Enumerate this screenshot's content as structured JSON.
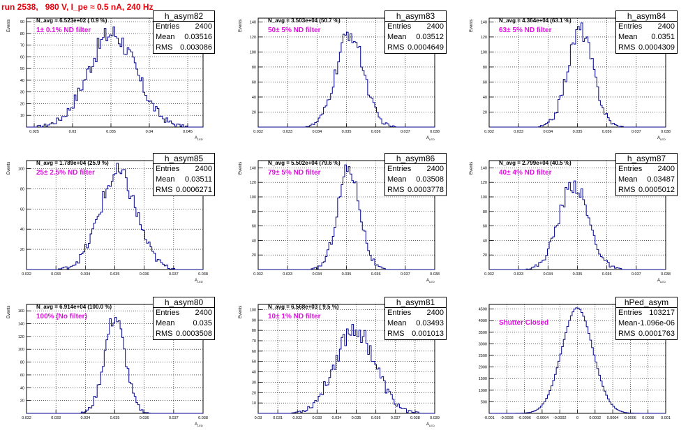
{
  "run_title": "run 2538,   980 V, I_pe ≈ 0.5 nA, 240 Hz",
  "colors": {
    "hist": "#00008b",
    "title": "#e8000b",
    "filter": "#e010e0"
  },
  "chart_data": [
    {
      "type": "histogram",
      "name": "h_asym82",
      "navg": "N_avg = 6.523e+02 ( 0.9 %)",
      "filter": "1± 0.1% ND filter",
      "stats": {
        "entries": "2400",
        "mean": "0.03516",
        "rms": "0.003086"
      },
      "xlabel": "A",
      "xlabel_sub": "LED",
      "ylabel": "Events",
      "xlim": [
        0.024,
        0.047
      ],
      "ylim": [
        0,
        93
      ],
      "xticks": [
        0.025,
        0.03,
        0.035,
        0.04,
        0.045
      ],
      "xtick_labels": [
        "0.025",
        "0.03",
        "0.035",
        "0.04",
        "0.045"
      ],
      "yticks": [
        10,
        20,
        30,
        40,
        50,
        60,
        70,
        80,
        90
      ],
      "dist": {
        "mean": 0.03516,
        "sigma": 0.003086,
        "peak": 80
      },
      "grid": true
    },
    {
      "type": "histogram",
      "name": "h_asym83",
      "navg": "N_avg = 3.503e+04 (50.7 %)",
      "filter": "50± 5% ND filter",
      "stats": {
        "entries": "2400",
        "mean": "0.03512",
        "rms": "0.0004649"
      },
      "xlabel": "A",
      "xlabel_sub": "LED",
      "ylabel": "Events",
      "xlim": [
        0.032,
        0.038
      ],
      "ylim": [
        0,
        145
      ],
      "xticks": [
        0.032,
        0.033,
        0.034,
        0.035,
        0.036,
        0.037,
        0.038
      ],
      "xtick_labels": [
        "0.032",
        "0.033",
        "0.034",
        "0.035",
        "0.036",
        "0.037",
        "0.038"
      ],
      "yticks": [
        20,
        40,
        60,
        80,
        100,
        120,
        140
      ],
      "dist": {
        "mean": 0.03512,
        "sigma": 0.0004649,
        "peak": 125
      },
      "grid": true
    },
    {
      "type": "histogram",
      "name": "h_asym84",
      "navg": "N_avg = 4.364e+04 (63.1 %)",
      "filter": "63± 5% ND filter",
      "stats": {
        "entries": "2400",
        "mean": "0.0351",
        "rms": "0.0004309"
      },
      "xlabel": "A",
      "xlabel_sub": "LED",
      "ylabel": "Events",
      "xlim": [
        0.032,
        0.038
      ],
      "ylim": [
        0,
        145
      ],
      "xticks": [
        0.032,
        0.033,
        0.034,
        0.035,
        0.036,
        0.037,
        0.038
      ],
      "xtick_labels": [
        "0.032",
        "0.033",
        "0.034",
        "0.035",
        "0.036",
        "0.037",
        "0.038"
      ],
      "yticks": [
        20,
        40,
        60,
        80,
        100,
        120,
        140
      ],
      "dist": {
        "mean": 0.0351,
        "sigma": 0.0004309,
        "peak": 130
      },
      "grid": true
    },
    {
      "type": "histogram",
      "name": "h_asym85",
      "navg": "N_avg = 1.789e+04 (25.9 %)",
      "filter": "25± 2.5% ND filter",
      "stats": {
        "entries": "2400",
        "mean": "0.03511",
        "rms": "0.0006271"
      },
      "xlabel": "A",
      "xlabel_sub": "LED",
      "ylabel": "Events",
      "xlim": [
        0.032,
        0.038
      ],
      "ylim": [
        0,
        108
      ],
      "xticks": [
        0.032,
        0.033,
        0.034,
        0.035,
        0.036,
        0.037,
        0.038
      ],
      "xtick_labels": [
        "0.032",
        "0.033",
        "0.034",
        "0.035",
        "0.036",
        "0.037",
        "0.038"
      ],
      "yticks": [
        20,
        40,
        60,
        80,
        100
      ],
      "dist": {
        "mean": 0.03511,
        "sigma": 0.0006271,
        "peak": 95
      },
      "grid": true
    },
    {
      "type": "histogram",
      "name": "h_asym86",
      "navg": "N_avg = 5.502e+04 (79.6 %)",
      "filter": "79± 5% ND filter",
      "stats": {
        "entries": "2400",
        "mean": "0.03508",
        "rms": "0.0003778"
      },
      "xlabel": "A",
      "xlabel_sub": "LED",
      "ylabel": "Events",
      "xlim": [
        0.032,
        0.038
      ],
      "ylim": [
        0,
        150
      ],
      "xticks": [
        0.032,
        0.033,
        0.034,
        0.035,
        0.036,
        0.037,
        0.038
      ],
      "xtick_labels": [
        "0.032",
        "0.033",
        "0.034",
        "0.035",
        "0.036",
        "0.037",
        "0.038"
      ],
      "yticks": [
        20,
        40,
        60,
        80,
        100,
        120,
        140
      ],
      "dist": {
        "mean": 0.03508,
        "sigma": 0.0003778,
        "peak": 140
      },
      "grid": true
    },
    {
      "type": "histogram",
      "name": "h_asym87",
      "navg": "N_avg = 2.799e+04 (40.5 %)",
      "filter": "40± 4% ND filter",
      "stats": {
        "entries": "2400",
        "mean": "0.03487",
        "rms": "0.0005012"
      },
      "xlabel": "A",
      "xlabel_sub": "LED",
      "ylabel": "Events",
      "xlim": [
        0.032,
        0.038
      ],
      "ylim": [
        0,
        150
      ],
      "xticks": [
        0.032,
        0.033,
        0.034,
        0.035,
        0.036,
        0.037,
        0.038
      ],
      "xtick_labels": [
        "0.032",
        "0.033",
        "0.034",
        "0.035",
        "0.036",
        "0.037",
        "0.038"
      ],
      "yticks": [
        20,
        40,
        60,
        80,
        100,
        120,
        140
      ],
      "dist": {
        "mean": 0.03487,
        "sigma": 0.0005012,
        "peak": 118
      },
      "grid": true
    },
    {
      "type": "histogram",
      "name": "h_asym80",
      "navg": "N_avg = 6.914e+04 (100.0 %)",
      "filter": "100% (No filter)",
      "stats": {
        "entries": "2400",
        "mean": "0.035",
        "rms": "0.0003508"
      },
      "xlabel": "A",
      "xlabel_sub": "LED",
      "ylabel": "Events",
      "xlim": [
        0.032,
        0.038
      ],
      "ylim": [
        0,
        170
      ],
      "xticks": [
        0.032,
        0.033,
        0.034,
        0.035,
        0.036,
        0.037,
        0.038
      ],
      "xtick_labels": [
        "0.032",
        "0.033",
        "0.034",
        "0.035",
        "0.036",
        "0.037",
        "0.038"
      ],
      "yticks": [
        20,
        40,
        60,
        80,
        100,
        120,
        140,
        160
      ],
      "dist": {
        "mean": 0.035,
        "sigma": 0.0003508,
        "peak": 150
      },
      "grid": true
    },
    {
      "type": "histogram",
      "name": "h_asym81",
      "navg": "N_avg = 6.568e+03 ( 9.5 %)",
      "filter": "10± 1% ND filter",
      "stats": {
        "entries": "2400",
        "mean": "0.03493",
        "rms": "0.001013"
      },
      "xlabel": "A",
      "xlabel_sub": "LED",
      "ylabel": "Events",
      "xlim": [
        0.03,
        0.039
      ],
      "ylim": [
        0,
        105
      ],
      "xticks": [
        0.03,
        0.031,
        0.032,
        0.033,
        0.034,
        0.035,
        0.036,
        0.037,
        0.038,
        0.039
      ],
      "xtick_labels": [
        "0.03",
        "0.031",
        "0.032",
        "0.033",
        "0.034",
        "0.035",
        "0.036",
        "0.037",
        "0.038",
        "0.039"
      ],
      "yticks": [
        10,
        20,
        30,
        40,
        50,
        60,
        70,
        80,
        90,
        100
      ],
      "dist": {
        "mean": 0.03493,
        "sigma": 0.001013,
        "peak": 82
      },
      "grid": true
    },
    {
      "type": "histogram",
      "name": "hPed_asym",
      "navg": "",
      "filter": "Shutter Closed",
      "stats": {
        "entries": "103217",
        "mean": "-1.096e-06",
        "rms": "0.0001763"
      },
      "xlabel": "",
      "xlabel_sub": "",
      "ylabel": "",
      "xlim": [
        -0.001,
        0.001
      ],
      "ylim": [
        0,
        4700
      ],
      "xticks": [
        -0.001,
        -0.0008,
        -0.0006,
        -0.0004,
        -0.0002,
        0,
        0.0002,
        0.0004,
        0.0006,
        0.0008,
        0.001
      ],
      "xtick_labels": [
        "-0.001",
        "-0.0008",
        "-0.0006",
        "-0.0004",
        "-0.0002",
        "0",
        "0.0002",
        "0.0004",
        "0.0006",
        "0.0008",
        "0.001"
      ],
      "yticks": [
        500,
        1000,
        1500,
        2000,
        2500,
        3000,
        3500,
        4000,
        4500
      ],
      "dist": {
        "mean": -1.096e-06,
        "sigma": 0.0001763,
        "peak": 4550
      },
      "grid": true
    }
  ]
}
